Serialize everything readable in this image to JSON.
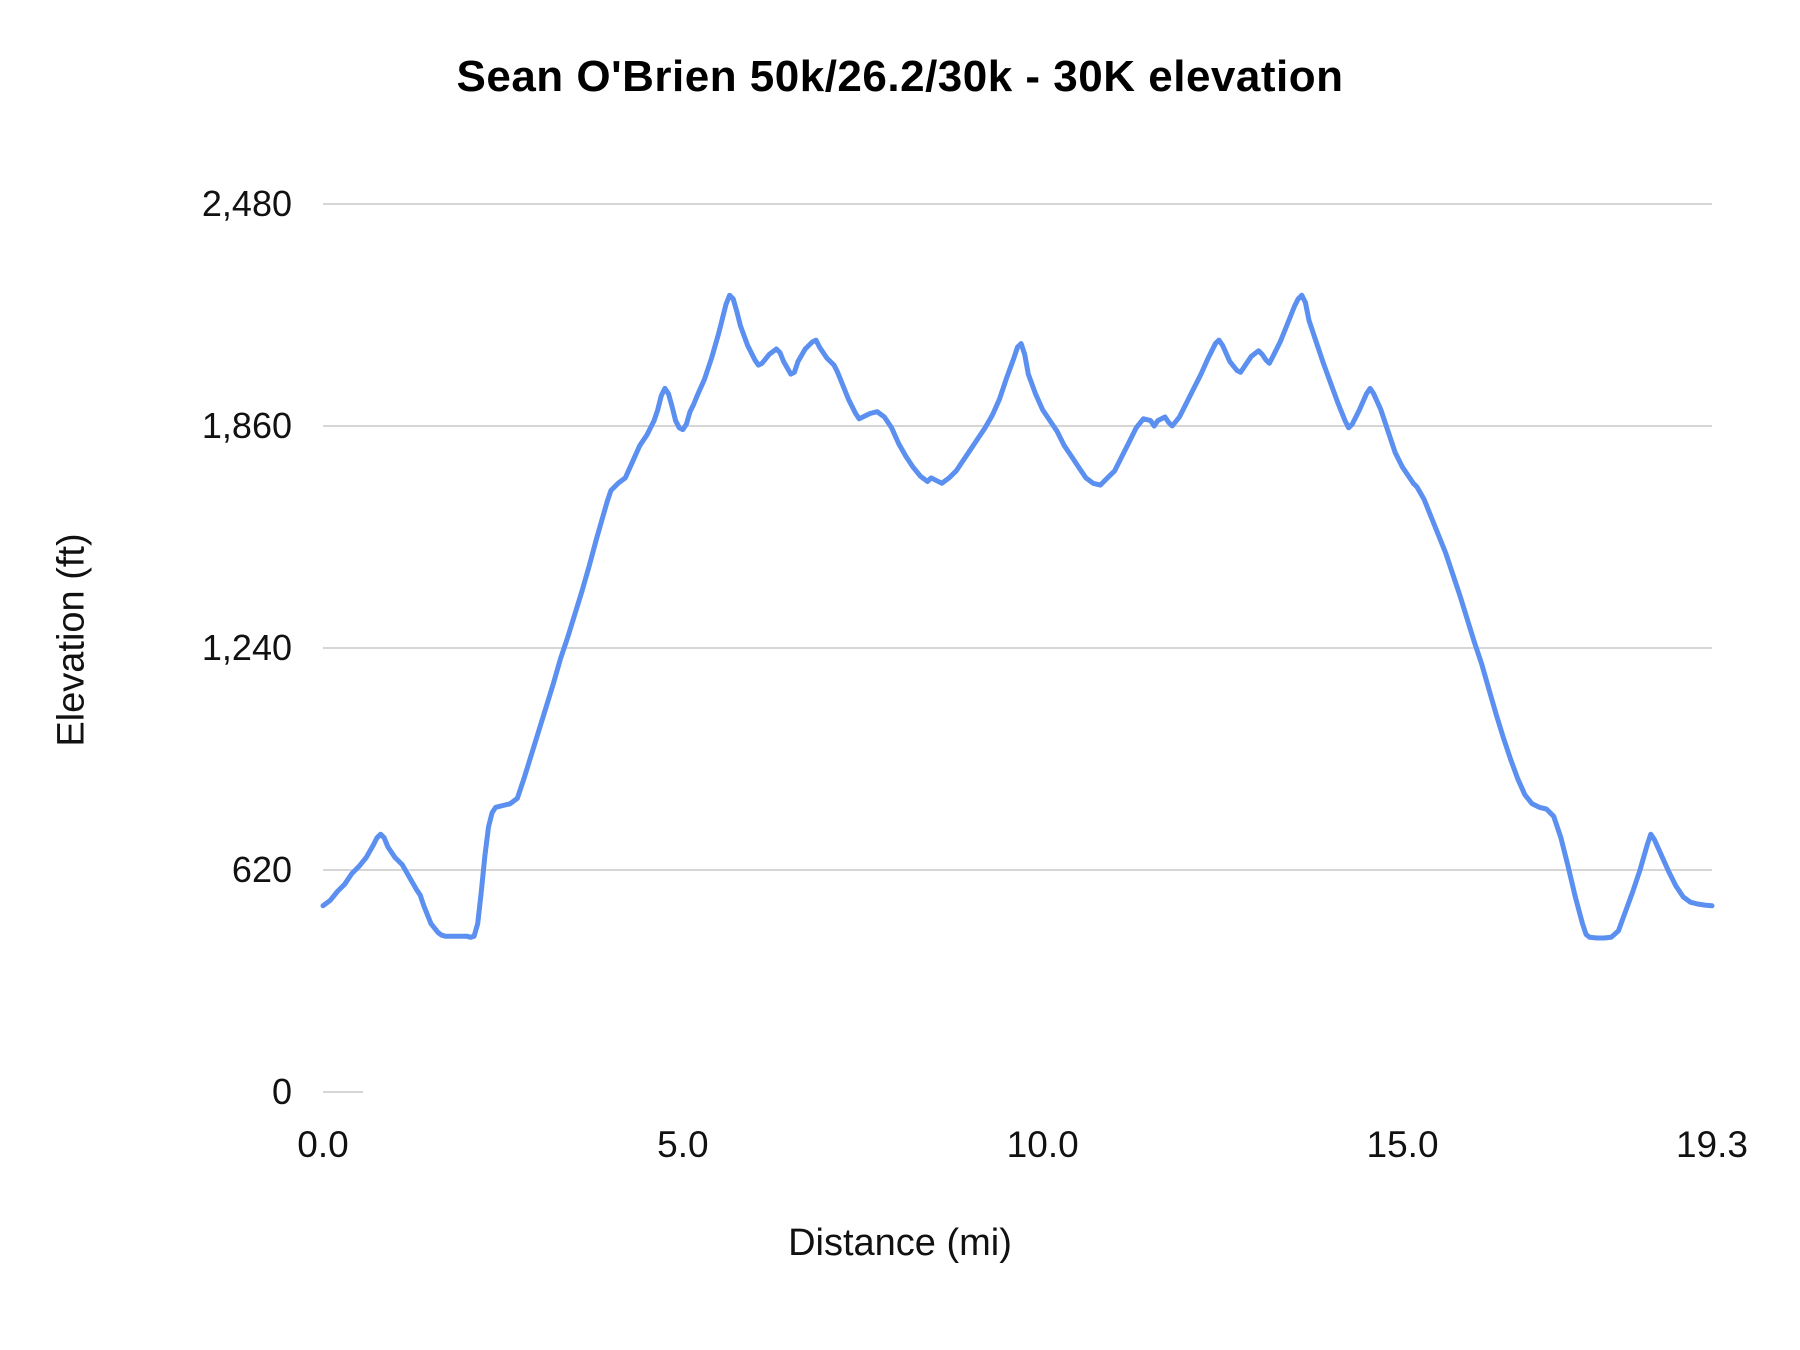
{
  "chart_data": {
    "type": "line",
    "title": "Sean O'Brien 50k/26.2/30k - 30K elevation",
    "xlabel": "Distance (mi)",
    "ylabel": "Elevation (ft)",
    "xlim": [
      0,
      19.3
    ],
    "ylim": [
      0,
      2480
    ],
    "grid": "horizontal",
    "legend": "none",
    "line_color": "#5b8ff0",
    "grid_color": "#d6d6d6",
    "x_ticks": [
      {
        "value": 0,
        "label": "0.0"
      },
      {
        "value": 5,
        "label": "5.0"
      },
      {
        "value": 10,
        "label": "10.0"
      },
      {
        "value": 15,
        "label": "15.0"
      },
      {
        "value": 19.3,
        "label": "19.3"
      }
    ],
    "y_ticks": [
      {
        "value": 0,
        "label": "0"
      },
      {
        "value": 620,
        "label": "620"
      },
      {
        "value": 1240,
        "label": "1,240"
      },
      {
        "value": 1860,
        "label": "1,860"
      },
      {
        "value": 2480,
        "label": "2,480"
      }
    ],
    "series": [
      {
        "name": "30K elevation",
        "points": [
          [
            0.0,
            520
          ],
          [
            0.1,
            535
          ],
          [
            0.2,
            560
          ],
          [
            0.3,
            580
          ],
          [
            0.4,
            610
          ],
          [
            0.5,
            630
          ],
          [
            0.6,
            655
          ],
          [
            0.7,
            690
          ],
          [
            0.75,
            710
          ],
          [
            0.8,
            720
          ],
          [
            0.85,
            710
          ],
          [
            0.9,
            685
          ],
          [
            1.0,
            655
          ],
          [
            1.1,
            635
          ],
          [
            1.2,
            600
          ],
          [
            1.3,
            565
          ],
          [
            1.35,
            550
          ],
          [
            1.4,
            520
          ],
          [
            1.5,
            470
          ],
          [
            1.6,
            445
          ],
          [
            1.65,
            438
          ],
          [
            1.7,
            435
          ],
          [
            1.8,
            435
          ],
          [
            1.9,
            435
          ],
          [
            2.0,
            435
          ],
          [
            2.05,
            432
          ],
          [
            2.1,
            435
          ],
          [
            2.15,
            470
          ],
          [
            2.2,
            560
          ],
          [
            2.25,
            660
          ],
          [
            2.3,
            740
          ],
          [
            2.35,
            780
          ],
          [
            2.4,
            795
          ],
          [
            2.5,
            800
          ],
          [
            2.6,
            805
          ],
          [
            2.7,
            820
          ],
          [
            2.8,
            880
          ],
          [
            2.9,
            945
          ],
          [
            3.0,
            1010
          ],
          [
            3.1,
            1075
          ],
          [
            3.2,
            1140
          ],
          [
            3.3,
            1210
          ],
          [
            3.4,
            1270
          ],
          [
            3.5,
            1335
          ],
          [
            3.6,
            1400
          ],
          [
            3.7,
            1470
          ],
          [
            3.8,
            1545
          ],
          [
            3.9,
            1615
          ],
          [
            3.95,
            1650
          ],
          [
            4.0,
            1680
          ],
          [
            4.1,
            1700
          ],
          [
            4.2,
            1715
          ],
          [
            4.3,
            1760
          ],
          [
            4.4,
            1805
          ],
          [
            4.5,
            1835
          ],
          [
            4.6,
            1875
          ],
          [
            4.65,
            1905
          ],
          [
            4.7,
            1945
          ],
          [
            4.75,
            1965
          ],
          [
            4.8,
            1950
          ],
          [
            4.85,
            1915
          ],
          [
            4.9,
            1875
          ],
          [
            4.95,
            1855
          ],
          [
            5.0,
            1850
          ],
          [
            5.05,
            1865
          ],
          [
            5.1,
            1900
          ],
          [
            5.15,
            1920
          ],
          [
            5.2,
            1945
          ],
          [
            5.3,
            1990
          ],
          [
            5.4,
            2050
          ],
          [
            5.5,
            2120
          ],
          [
            5.55,
            2160
          ],
          [
            5.6,
            2200
          ],
          [
            5.65,
            2225
          ],
          [
            5.7,
            2215
          ],
          [
            5.75,
            2180
          ],
          [
            5.8,
            2140
          ],
          [
            5.9,
            2085
          ],
          [
            6.0,
            2045
          ],
          [
            6.05,
            2030
          ],
          [
            6.1,
            2035
          ],
          [
            6.2,
            2060
          ],
          [
            6.3,
            2075
          ],
          [
            6.35,
            2065
          ],
          [
            6.4,
            2040
          ],
          [
            6.5,
            2005
          ],
          [
            6.55,
            2010
          ],
          [
            6.6,
            2040
          ],
          [
            6.7,
            2075
          ],
          [
            6.8,
            2095
          ],
          [
            6.85,
            2100
          ],
          [
            6.9,
            2080
          ],
          [
            7.0,
            2050
          ],
          [
            7.1,
            2030
          ],
          [
            7.15,
            2010
          ],
          [
            7.2,
            1985
          ],
          [
            7.3,
            1935
          ],
          [
            7.4,
            1895
          ],
          [
            7.45,
            1880
          ],
          [
            7.5,
            1885
          ],
          [
            7.6,
            1895
          ],
          [
            7.7,
            1900
          ],
          [
            7.8,
            1885
          ],
          [
            7.9,
            1855
          ],
          [
            8.0,
            1810
          ],
          [
            8.1,
            1775
          ],
          [
            8.2,
            1745
          ],
          [
            8.3,
            1720
          ],
          [
            8.4,
            1705
          ],
          [
            8.45,
            1715
          ],
          [
            8.5,
            1710
          ],
          [
            8.6,
            1700
          ],
          [
            8.7,
            1715
          ],
          [
            8.8,
            1735
          ],
          [
            8.9,
            1765
          ],
          [
            9.0,
            1795
          ],
          [
            9.1,
            1825
          ],
          [
            9.2,
            1855
          ],
          [
            9.3,
            1890
          ],
          [
            9.4,
            1935
          ],
          [
            9.5,
            1995
          ],
          [
            9.6,
            2050
          ],
          [
            9.65,
            2080
          ],
          [
            9.7,
            2090
          ],
          [
            9.75,
            2060
          ],
          [
            9.8,
            2005
          ],
          [
            9.9,
            1950
          ],
          [
            10.0,
            1905
          ],
          [
            10.1,
            1875
          ],
          [
            10.2,
            1845
          ],
          [
            10.3,
            1805
          ],
          [
            10.4,
            1775
          ],
          [
            10.5,
            1745
          ],
          [
            10.6,
            1715
          ],
          [
            10.7,
            1700
          ],
          [
            10.8,
            1695
          ],
          [
            10.9,
            1715
          ],
          [
            11.0,
            1735
          ],
          [
            11.1,
            1775
          ],
          [
            11.2,
            1815
          ],
          [
            11.3,
            1855
          ],
          [
            11.4,
            1880
          ],
          [
            11.5,
            1875
          ],
          [
            11.55,
            1860
          ],
          [
            11.6,
            1875
          ],
          [
            11.7,
            1885
          ],
          [
            11.75,
            1870
          ],
          [
            11.8,
            1860
          ],
          [
            11.9,
            1885
          ],
          [
            12.0,
            1925
          ],
          [
            12.1,
            1965
          ],
          [
            12.2,
            2005
          ],
          [
            12.3,
            2050
          ],
          [
            12.4,
            2090
          ],
          [
            12.45,
            2100
          ],
          [
            12.5,
            2085
          ],
          [
            12.6,
            2040
          ],
          [
            12.7,
            2015
          ],
          [
            12.75,
            2010
          ],
          [
            12.8,
            2025
          ],
          [
            12.9,
            2055
          ],
          [
            13.0,
            2070
          ],
          [
            13.05,
            2060
          ],
          [
            13.1,
            2045
          ],
          [
            13.15,
            2035
          ],
          [
            13.2,
            2055
          ],
          [
            13.3,
            2095
          ],
          [
            13.4,
            2145
          ],
          [
            13.5,
            2195
          ],
          [
            13.55,
            2215
          ],
          [
            13.6,
            2225
          ],
          [
            13.65,
            2205
          ],
          [
            13.7,
            2155
          ],
          [
            13.8,
            2095
          ],
          [
            13.9,
            2035
          ],
          [
            14.0,
            1980
          ],
          [
            14.1,
            1925
          ],
          [
            14.2,
            1875
          ],
          [
            14.25,
            1855
          ],
          [
            14.3,
            1865
          ],
          [
            14.4,
            1905
          ],
          [
            14.5,
            1950
          ],
          [
            14.55,
            1965
          ],
          [
            14.6,
            1950
          ],
          [
            14.7,
            1905
          ],
          [
            14.8,
            1845
          ],
          [
            14.9,
            1785
          ],
          [
            15.0,
            1745
          ],
          [
            15.1,
            1715
          ],
          [
            15.15,
            1700
          ],
          [
            15.2,
            1690
          ],
          [
            15.3,
            1655
          ],
          [
            15.4,
            1605
          ],
          [
            15.5,
            1555
          ],
          [
            15.6,
            1505
          ],
          [
            15.7,
            1445
          ],
          [
            15.8,
            1385
          ],
          [
            15.9,
            1320
          ],
          [
            16.0,
            1255
          ],
          [
            16.1,
            1195
          ],
          [
            16.2,
            1125
          ],
          [
            16.3,
            1055
          ],
          [
            16.4,
            990
          ],
          [
            16.5,
            930
          ],
          [
            16.6,
            875
          ],
          [
            16.7,
            830
          ],
          [
            16.8,
            805
          ],
          [
            16.9,
            795
          ],
          [
            17.0,
            790
          ],
          [
            17.1,
            770
          ],
          [
            17.2,
            710
          ],
          [
            17.3,
            630
          ],
          [
            17.4,
            545
          ],
          [
            17.5,
            470
          ],
          [
            17.55,
            440
          ],
          [
            17.6,
            432
          ],
          [
            17.7,
            430
          ],
          [
            17.8,
            430
          ],
          [
            17.9,
            432
          ],
          [
            18.0,
            450
          ],
          [
            18.1,
            505
          ],
          [
            18.2,
            560
          ],
          [
            18.3,
            620
          ],
          [
            18.4,
            690
          ],
          [
            18.45,
            720
          ],
          [
            18.5,
            705
          ],
          [
            18.6,
            660
          ],
          [
            18.7,
            615
          ],
          [
            18.8,
            575
          ],
          [
            18.9,
            545
          ],
          [
            19.0,
            530
          ],
          [
            19.1,
            525
          ],
          [
            19.2,
            522
          ],
          [
            19.3,
            520
          ]
        ]
      }
    ]
  }
}
